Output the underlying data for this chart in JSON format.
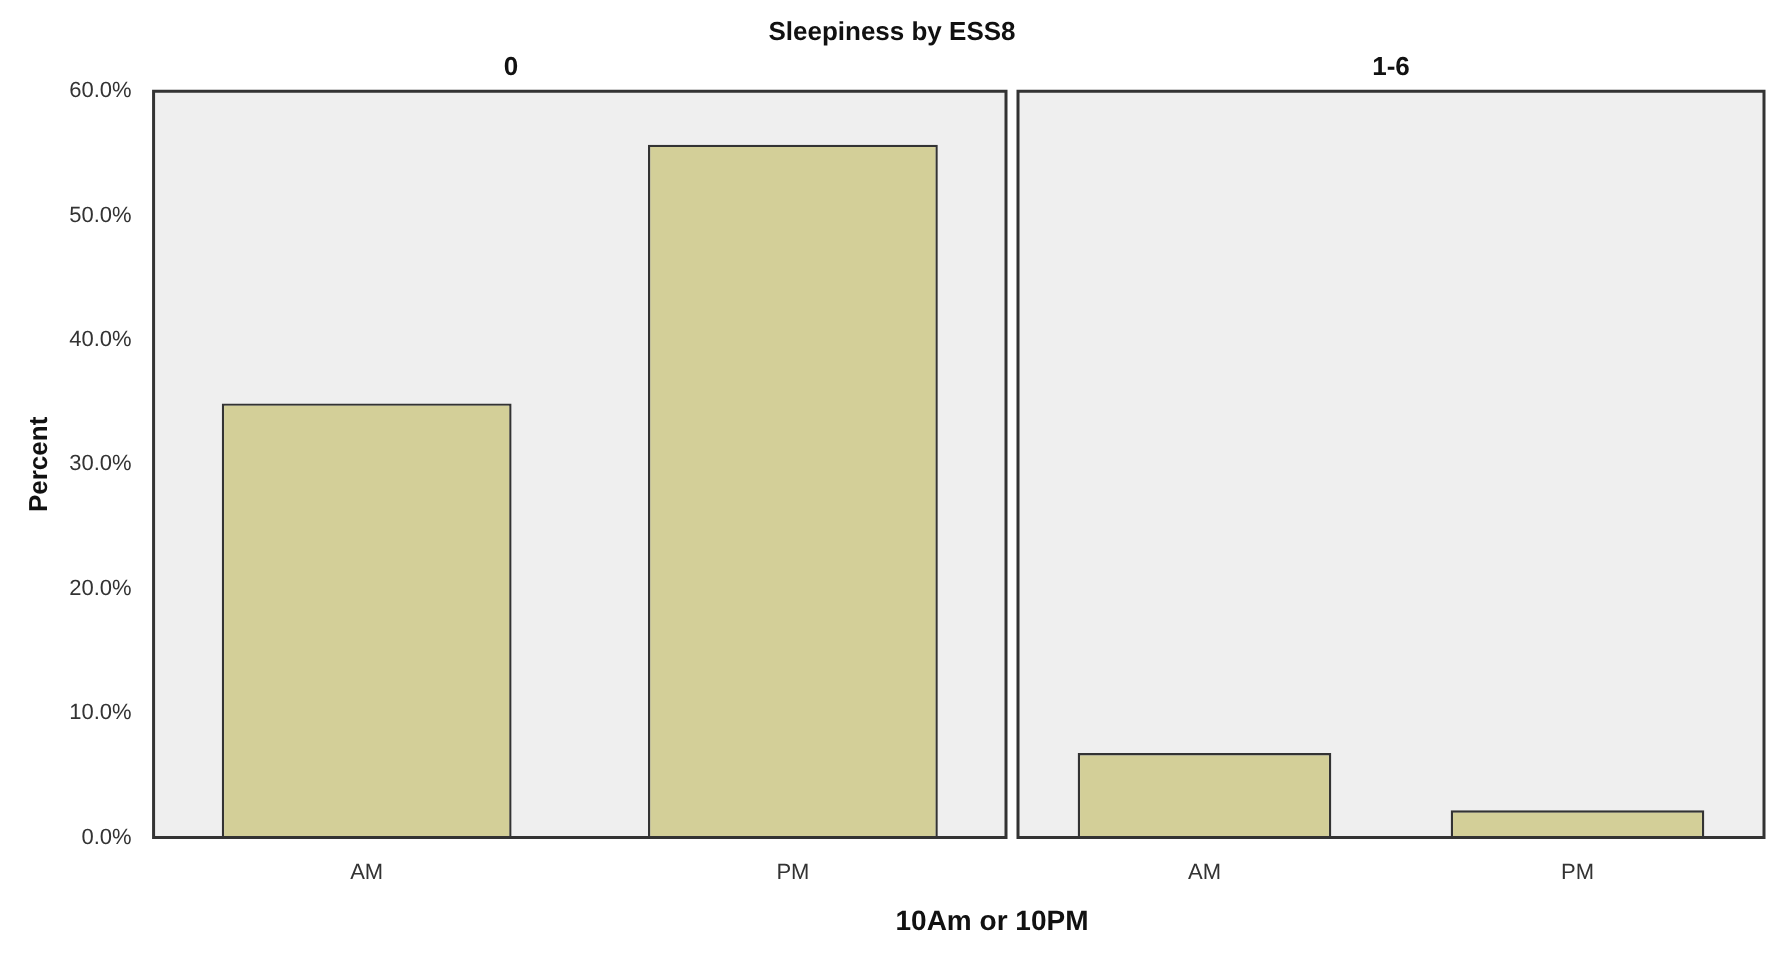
{
  "chart_data": [
    {
      "type": "bar",
      "title": "Sleepiness by ESS8",
      "subtitle": "0",
      "xlabel": "10Am or 10PM",
      "ylabel": "Percent",
      "categories": [
        "AM",
        "PM"
      ],
      "values": [
        34.9,
        55.7
      ],
      "color": "#d3cf98",
      "ylim": [
        0,
        60
      ],
      "yticks": [
        {
          "value": 0,
          "label": "0.0%"
        },
        {
          "value": 10,
          "label": "10.0%"
        },
        {
          "value": 20,
          "label": "20.0%"
        },
        {
          "value": 30,
          "label": "30.0%"
        },
        {
          "value": 40,
          "label": "40.0%"
        },
        {
          "value": 50,
          "label": "50.0%"
        },
        {
          "value": 60,
          "label": "60.0%"
        }
      ]
    },
    {
      "type": "bar",
      "subtitle": "1-6",
      "categories": [
        "AM",
        "PM"
      ],
      "values": [
        6.8,
        2.2
      ],
      "color": "#d3cf98",
      "ylim": [
        0,
        60
      ],
      "tick_labels": "x"
    }
  ]
}
